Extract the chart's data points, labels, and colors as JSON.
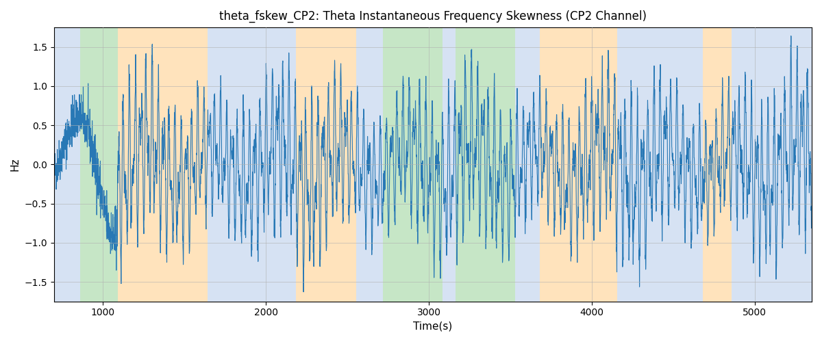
{
  "title": "theta_fskew_CP2: Theta Instantaneous Frequency Skewness (CP2 Channel)",
  "xlabel": "Time(s)",
  "ylabel": "Hz",
  "ylim": [
    -1.75,
    1.75
  ],
  "xlim": [
    700,
    5350
  ],
  "yticks": [
    -1.5,
    -1.0,
    -0.5,
    0.0,
    0.5,
    1.0,
    1.5
  ],
  "xticks": [
    1000,
    2000,
    3000,
    4000,
    5000
  ],
  "line_color": "#2878b5",
  "line_width": 0.8,
  "background_color": "#ffffff",
  "grid_color": "#b0b0b0",
  "bg_bands": [
    {
      "xmin": 700,
      "xmax": 860,
      "color": "#aec6e8",
      "alpha": 0.5
    },
    {
      "xmin": 860,
      "xmax": 1090,
      "color": "#8fce8f",
      "alpha": 0.5
    },
    {
      "xmin": 1090,
      "xmax": 1640,
      "color": "#ffc87a",
      "alpha": 0.5
    },
    {
      "xmin": 1640,
      "xmax": 2185,
      "color": "#aec6e8",
      "alpha": 0.5
    },
    {
      "xmin": 2185,
      "xmax": 2555,
      "color": "#ffc87a",
      "alpha": 0.5
    },
    {
      "xmin": 2555,
      "xmax": 2720,
      "color": "#aec6e8",
      "alpha": 0.5
    },
    {
      "xmin": 2720,
      "xmax": 3085,
      "color": "#8fce8f",
      "alpha": 0.5
    },
    {
      "xmin": 3085,
      "xmax": 3165,
      "color": "#aec6e8",
      "alpha": 0.5
    },
    {
      "xmin": 3165,
      "xmax": 3530,
      "color": "#8fce8f",
      "alpha": 0.5
    },
    {
      "xmin": 3530,
      "xmax": 3680,
      "color": "#aec6e8",
      "alpha": 0.5
    },
    {
      "xmin": 3680,
      "xmax": 4155,
      "color": "#ffc87a",
      "alpha": 0.5
    },
    {
      "xmin": 4155,
      "xmax": 4680,
      "color": "#aec6e8",
      "alpha": 0.5
    },
    {
      "xmin": 4680,
      "xmax": 4860,
      "color": "#ffc87a",
      "alpha": 0.5
    },
    {
      "xmin": 4860,
      "xmax": 5350,
      "color": "#aec6e8",
      "alpha": 0.5
    }
  ],
  "calm_regions": [
    [
      700,
      1090
    ]
  ],
  "dense_regions": [
    [
      1090,
      5350
    ]
  ]
}
